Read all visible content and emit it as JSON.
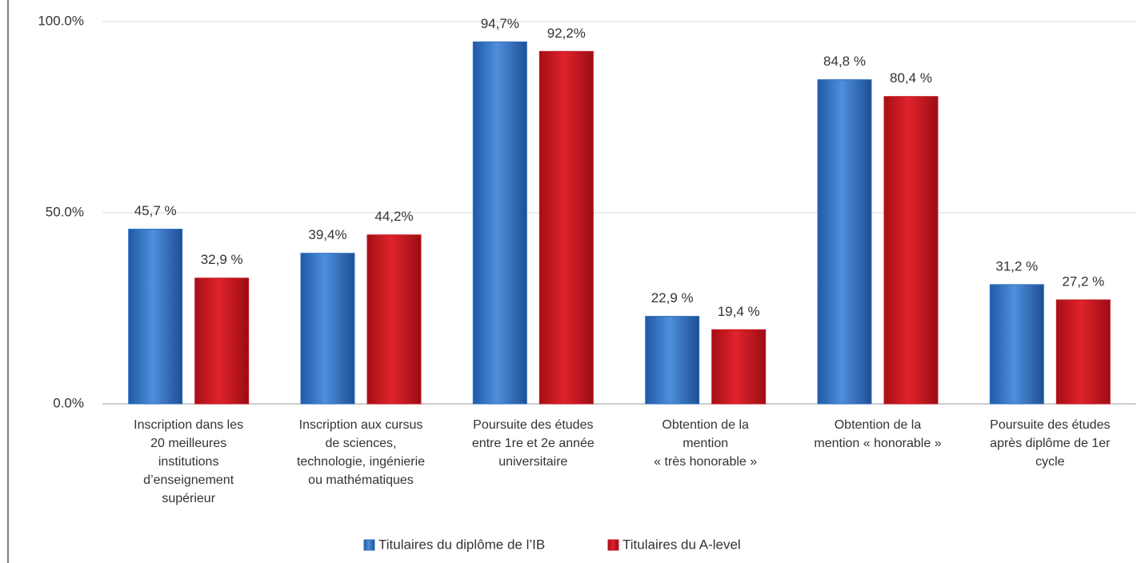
{
  "chart_data": {
    "type": "bar",
    "categories": [
      [
        "Inscription dans les",
        "20 meilleures",
        "institutions",
        "d’enseignement",
        "supérieur"
      ],
      [
        "Inscription aux cursus",
        "de sciences,",
        "technologie, ingénierie",
        "ou mathématiques"
      ],
      [
        "Poursuite des études",
        "entre 1re et 2e année",
        "universitaire"
      ],
      [
        "Obtention de la",
        "mention",
        "« très honorable »"
      ],
      [
        "Obtention de la",
        "mention « honorable »"
      ],
      [
        "Poursuite des études",
        "après diplôme de 1er",
        "cycle"
      ]
    ],
    "series": [
      {
        "name": "Titulaires du diplôme de l’IB",
        "color": "#2f6fc0",
        "values": [
          45.7,
          39.4,
          94.7,
          22.9,
          84.8,
          31.2
        ],
        "value_labels": [
          "45,7 %",
          "39,4%",
          "94,7%",
          "22,9 %",
          "84,8 %",
          "31,2 %"
        ]
      },
      {
        "name": "Titulaires du A-level",
        "color": "#c4161f",
        "values": [
          32.9,
          44.2,
          92.2,
          19.4,
          80.4,
          27.2
        ],
        "value_labels": [
          "32,9 %",
          "44,2%",
          "92,2%",
          "19,4 %",
          "80,4 %",
          "27,2 %"
        ]
      }
    ],
    "ylim": [
      0,
      100
    ],
    "yticks": [
      {
        "value": 0,
        "label": "0.0%"
      },
      {
        "value": 50,
        "label": "50.0%"
      },
      {
        "value": 100,
        "label": "100.0%"
      }
    ],
    "grid": true,
    "legend": "bottom"
  }
}
